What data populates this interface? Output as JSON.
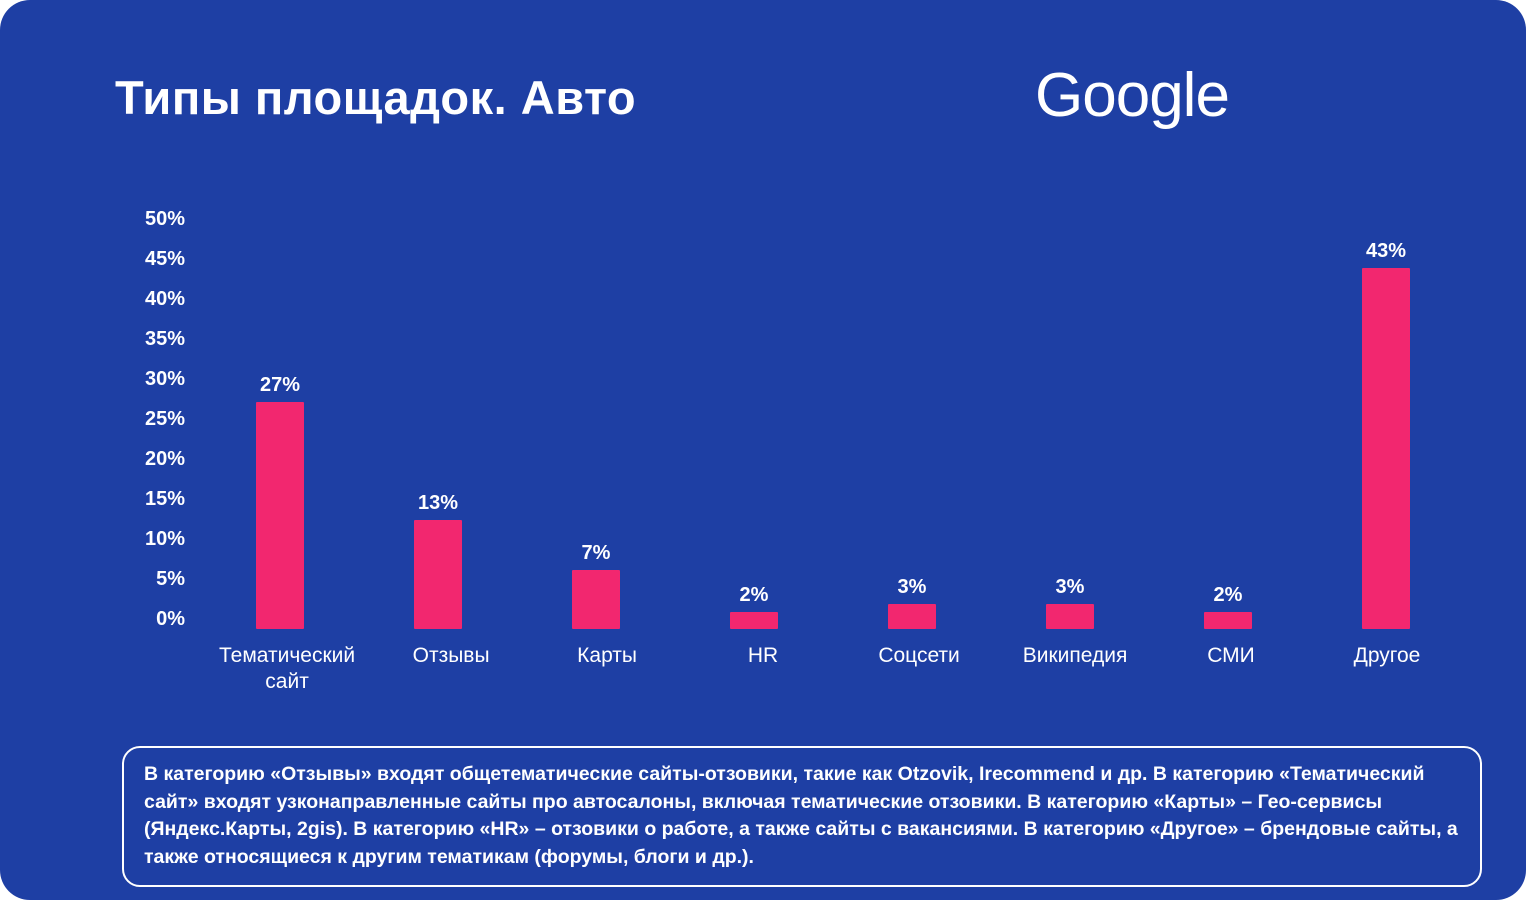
{
  "slide": {
    "title": "Типы площадок. Авто",
    "logo_text": "Google"
  },
  "colors": {
    "background": "#1e3fa4",
    "bar": "#f2276f",
    "text": "#ffffff"
  },
  "chart_data": {
    "type": "bar",
    "title": "Типы площадок. Авто",
    "categories": [
      "Тематический сайт",
      "Отзывы",
      "Карты",
      "HR",
      "Соцсети",
      "Википедия",
      "СМИ",
      "Другое"
    ],
    "values": [
      27,
      13,
      7,
      2,
      3,
      3,
      2,
      43
    ],
    "value_labels": [
      "27%",
      "13%",
      "7%",
      "2%",
      "3%",
      "3%",
      "2%",
      "43%"
    ],
    "xlabel": "",
    "ylabel": "",
    "ylim": [
      0,
      50
    ],
    "ytick_step": 5,
    "yticks": [
      "50%",
      "45%",
      "40%",
      "35%",
      "30%",
      "25%",
      "20%",
      "15%",
      "10%",
      "5%",
      "0%"
    ],
    "grid": false,
    "legend": false,
    "bar_color": "#f2276f"
  },
  "footer": {
    "text": "В категорию «Отзывы» входят общетематические сайты-отзовики, такие как Otzovik, Irecommend и др. В категорию «Тематический сайт» входят узконаправленные сайты про автосалоны, включая тематические отзовики. В категорию «Карты» – Гео-сервисы (Яндекс.Карты, 2gis). В категорию «HR» – отзовики о работе, а также сайты с вакансиями. В категорию «Другое» – брендовые сайты, а также относящиеся к другим тематикам (форумы, блоги и др.)."
  }
}
